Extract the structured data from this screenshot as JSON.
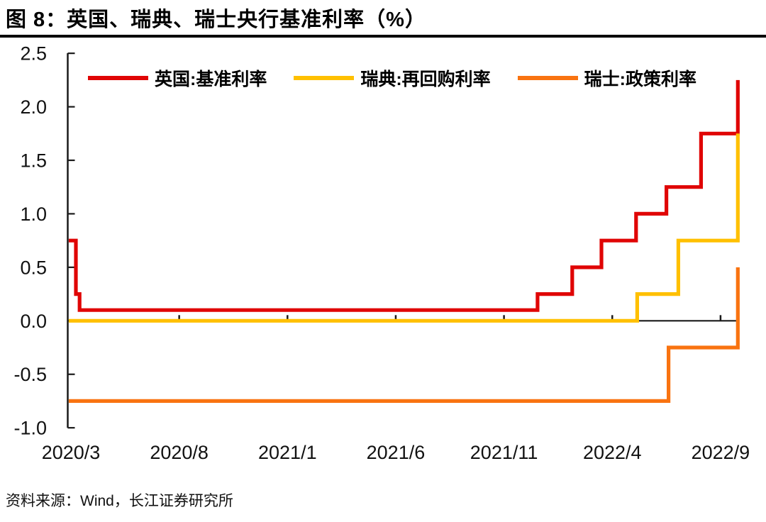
{
  "figure": {
    "title": "图 8：英国、瑞典、瑞士央行基准利率（%）",
    "source": "资料来源：Wind，长江证券研究所"
  },
  "colors": {
    "uk_red": "#e00505",
    "sweden_yellow": "#ffc000",
    "switzerland_orange": "#f97310",
    "axis": "#1a1a1a"
  },
  "chart_data": {
    "type": "line",
    "subtype": "step",
    "title": "图 8：英国、瑞典、瑞士央行基准利率（%）",
    "ylabel": "",
    "xlabel": "",
    "ylim": [
      -1.0,
      2.5
    ],
    "y_ticks": [
      2.5,
      2.0,
      1.5,
      1.0,
      0.5,
      0.0,
      -0.5,
      -1.0
    ],
    "x_tick_labels": [
      "2020/3",
      "2020/8",
      "2021/1",
      "2021/6",
      "2021/11",
      "2022/4",
      "2022/9"
    ],
    "x_unit": "months since 2020/3",
    "x_range": [
      -0.1,
      30.8
    ],
    "grid": false,
    "legend_position": "top",
    "series": [
      {
        "name": "英国:基准利率",
        "color": "#e00505",
        "steps": [
          [
            -0.1,
            0.75
          ],
          [
            0.23,
            0.25
          ],
          [
            0.4,
            0.1
          ],
          [
            21.55,
            0.25
          ],
          [
            23.15,
            0.5
          ],
          [
            24.5,
            0.75
          ],
          [
            26.1,
            1.0
          ],
          [
            27.5,
            1.25
          ],
          [
            29.1,
            1.75
          ],
          [
            30.8,
            2.25
          ]
        ]
      },
      {
        "name": "瑞典:再回购利率",
        "color": "#ffc000",
        "steps": [
          [
            -0.1,
            0.0
          ],
          [
            26.15,
            0.25
          ],
          [
            28.05,
            0.75
          ],
          [
            30.8,
            1.75
          ]
        ]
      },
      {
        "name": "瑞士:政策利率",
        "color": "#f97310",
        "steps": [
          [
            -0.1,
            -0.75
          ],
          [
            27.6,
            -0.25
          ],
          [
            30.8,
            0.5
          ]
        ]
      }
    ]
  }
}
